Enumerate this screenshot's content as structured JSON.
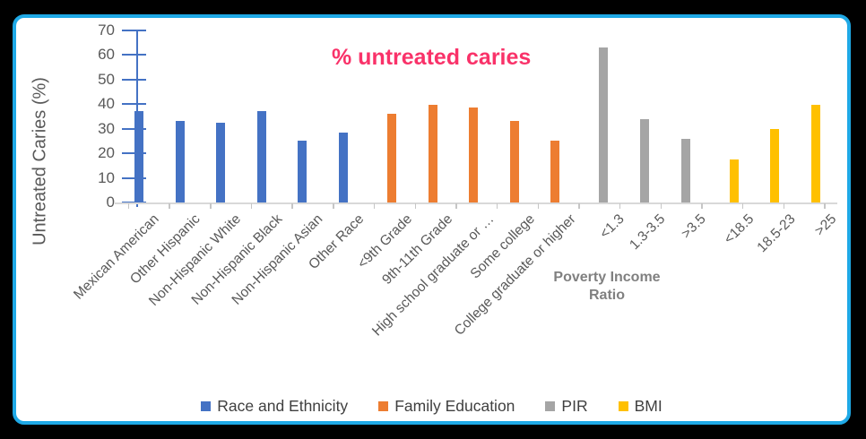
{
  "frame": {
    "background_color": "#000000",
    "panel_background": "#FFFFFF",
    "panel_border_color": "#1FA9E6"
  },
  "title": {
    "text": "% untreated caries",
    "color": "#F93269"
  },
  "y_axis": {
    "label": "Untreated Caries (%)",
    "tick_values": [
      0,
      10,
      20,
      30,
      40,
      50,
      60,
      70
    ],
    "max": 70,
    "text_color": "#595959",
    "axis_line_color": "#4472C4"
  },
  "x_axis": {
    "text_color": "#595959",
    "axis_line_color": "#D9D9D9",
    "tick_color": "#C6C6C6"
  },
  "annotation": {
    "line1": "Poverty Income",
    "line2": "Ratio",
    "color": "#808080"
  },
  "legend_text_color": "#404040",
  "chart_data": {
    "type": "bar",
    "title": "% untreated caries",
    "xlabel": "",
    "ylabel": "Untreated Caries (%)",
    "ylim": [
      0,
      70
    ],
    "grid": false,
    "legend_position": "bottom",
    "series": [
      {
        "name": "Race and Ethnicity",
        "color": "#4472C4",
        "categories": [
          "Mexican American",
          "Other Hispanic",
          "Non-Hispanic White",
          "Non-Hispanic Black",
          "Non-Hispanic Asian",
          "Other Race"
        ],
        "values": [
          37,
          33,
          32.5,
          37,
          25,
          28.5
        ]
      },
      {
        "name": "Family Education",
        "color": "#ED7D31",
        "categories": [
          "<9th Grade",
          "9th-11th Grade",
          "High school graduate or …",
          "Some college",
          "College graduate or higher"
        ],
        "values": [
          36,
          39.5,
          38.5,
          33,
          25
        ]
      },
      {
        "name": "PIR",
        "color": "#A5A5A5",
        "categories": [
          "<1.3",
          "1.3-3.5",
          ">3.5"
        ],
        "values": [
          63,
          34,
          26
        ]
      },
      {
        "name": "BMI",
        "color": "#FFC000",
        "categories": [
          "<18.5",
          "18.5-23",
          ">25"
        ],
        "values": [
          17.5,
          30,
          39.5
        ]
      }
    ],
    "annotations": [
      "Poverty Income Ratio"
    ]
  }
}
